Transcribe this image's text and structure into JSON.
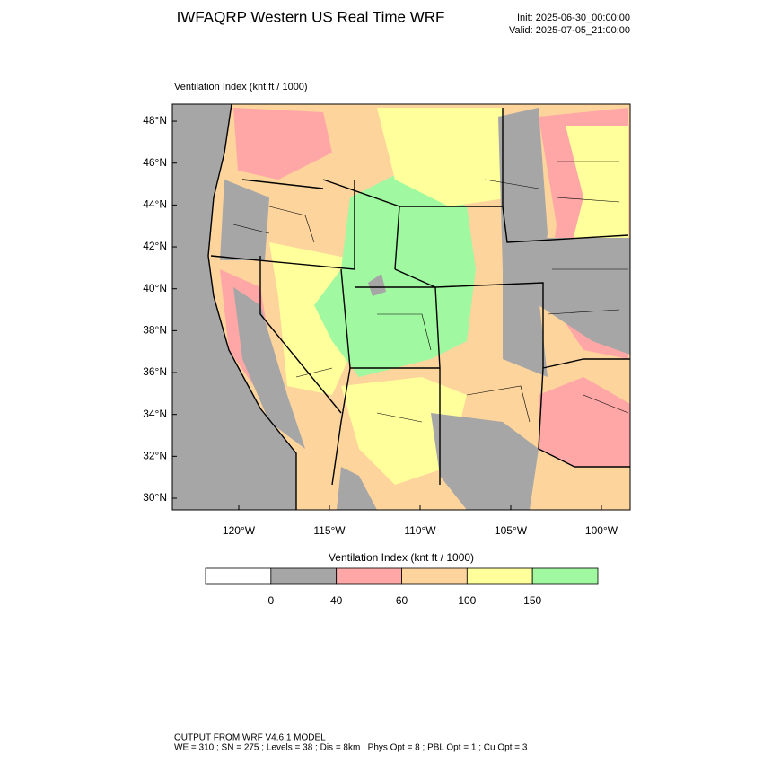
{
  "header": {
    "title": "IWFAQRP Western US Real Time WRF",
    "init": "Init: 2025-06-30_00:00:00",
    "valid": "Valid: 2025-07-05_21:00:00"
  },
  "map": {
    "subtitle": "Ventilation Index   (knt ft / 1000)",
    "lat_ticks": [
      {
        "value": 48,
        "label": "48°N"
      },
      {
        "value": 46,
        "label": "46°N"
      },
      {
        "value": 44,
        "label": "44°N"
      },
      {
        "value": 42,
        "label": "42°N"
      },
      {
        "value": 40,
        "label": "40°N"
      },
      {
        "value": 38,
        "label": "38°N"
      },
      {
        "value": 36,
        "label": "36°N"
      },
      {
        "value": 34,
        "label": "34°N"
      },
      {
        "value": 32,
        "label": "32°N"
      },
      {
        "value": 30,
        "label": "30°N"
      }
    ],
    "lon_ticks": [
      {
        "value": -120,
        "label": "120°W"
      },
      {
        "value": -115,
        "label": "115°W"
      },
      {
        "value": -110,
        "label": "110°W"
      },
      {
        "value": -105,
        "label": "105°W"
      },
      {
        "value": -100,
        "label": "100°W"
      }
    ]
  },
  "colorbar": {
    "title": "Ventilation Index   (knt ft / 1000)",
    "levels": [
      0,
      40,
      60,
      100,
      150
    ],
    "colors": [
      "#ffffff",
      "#a6a6a6",
      "#ffa6a6",
      "#fcd49c",
      "#ffff9c",
      "#a0f8a0"
    ]
  },
  "footer": {
    "line1": "OUTPUT FROM WRF V4.6.1 MODEL",
    "line2": "WE = 310 ; SN = 275 ; Levels = 38 ; Dis = 8km ; Phys Opt = 8 ; PBL Opt = 1 ; Cu Opt = 3"
  }
}
